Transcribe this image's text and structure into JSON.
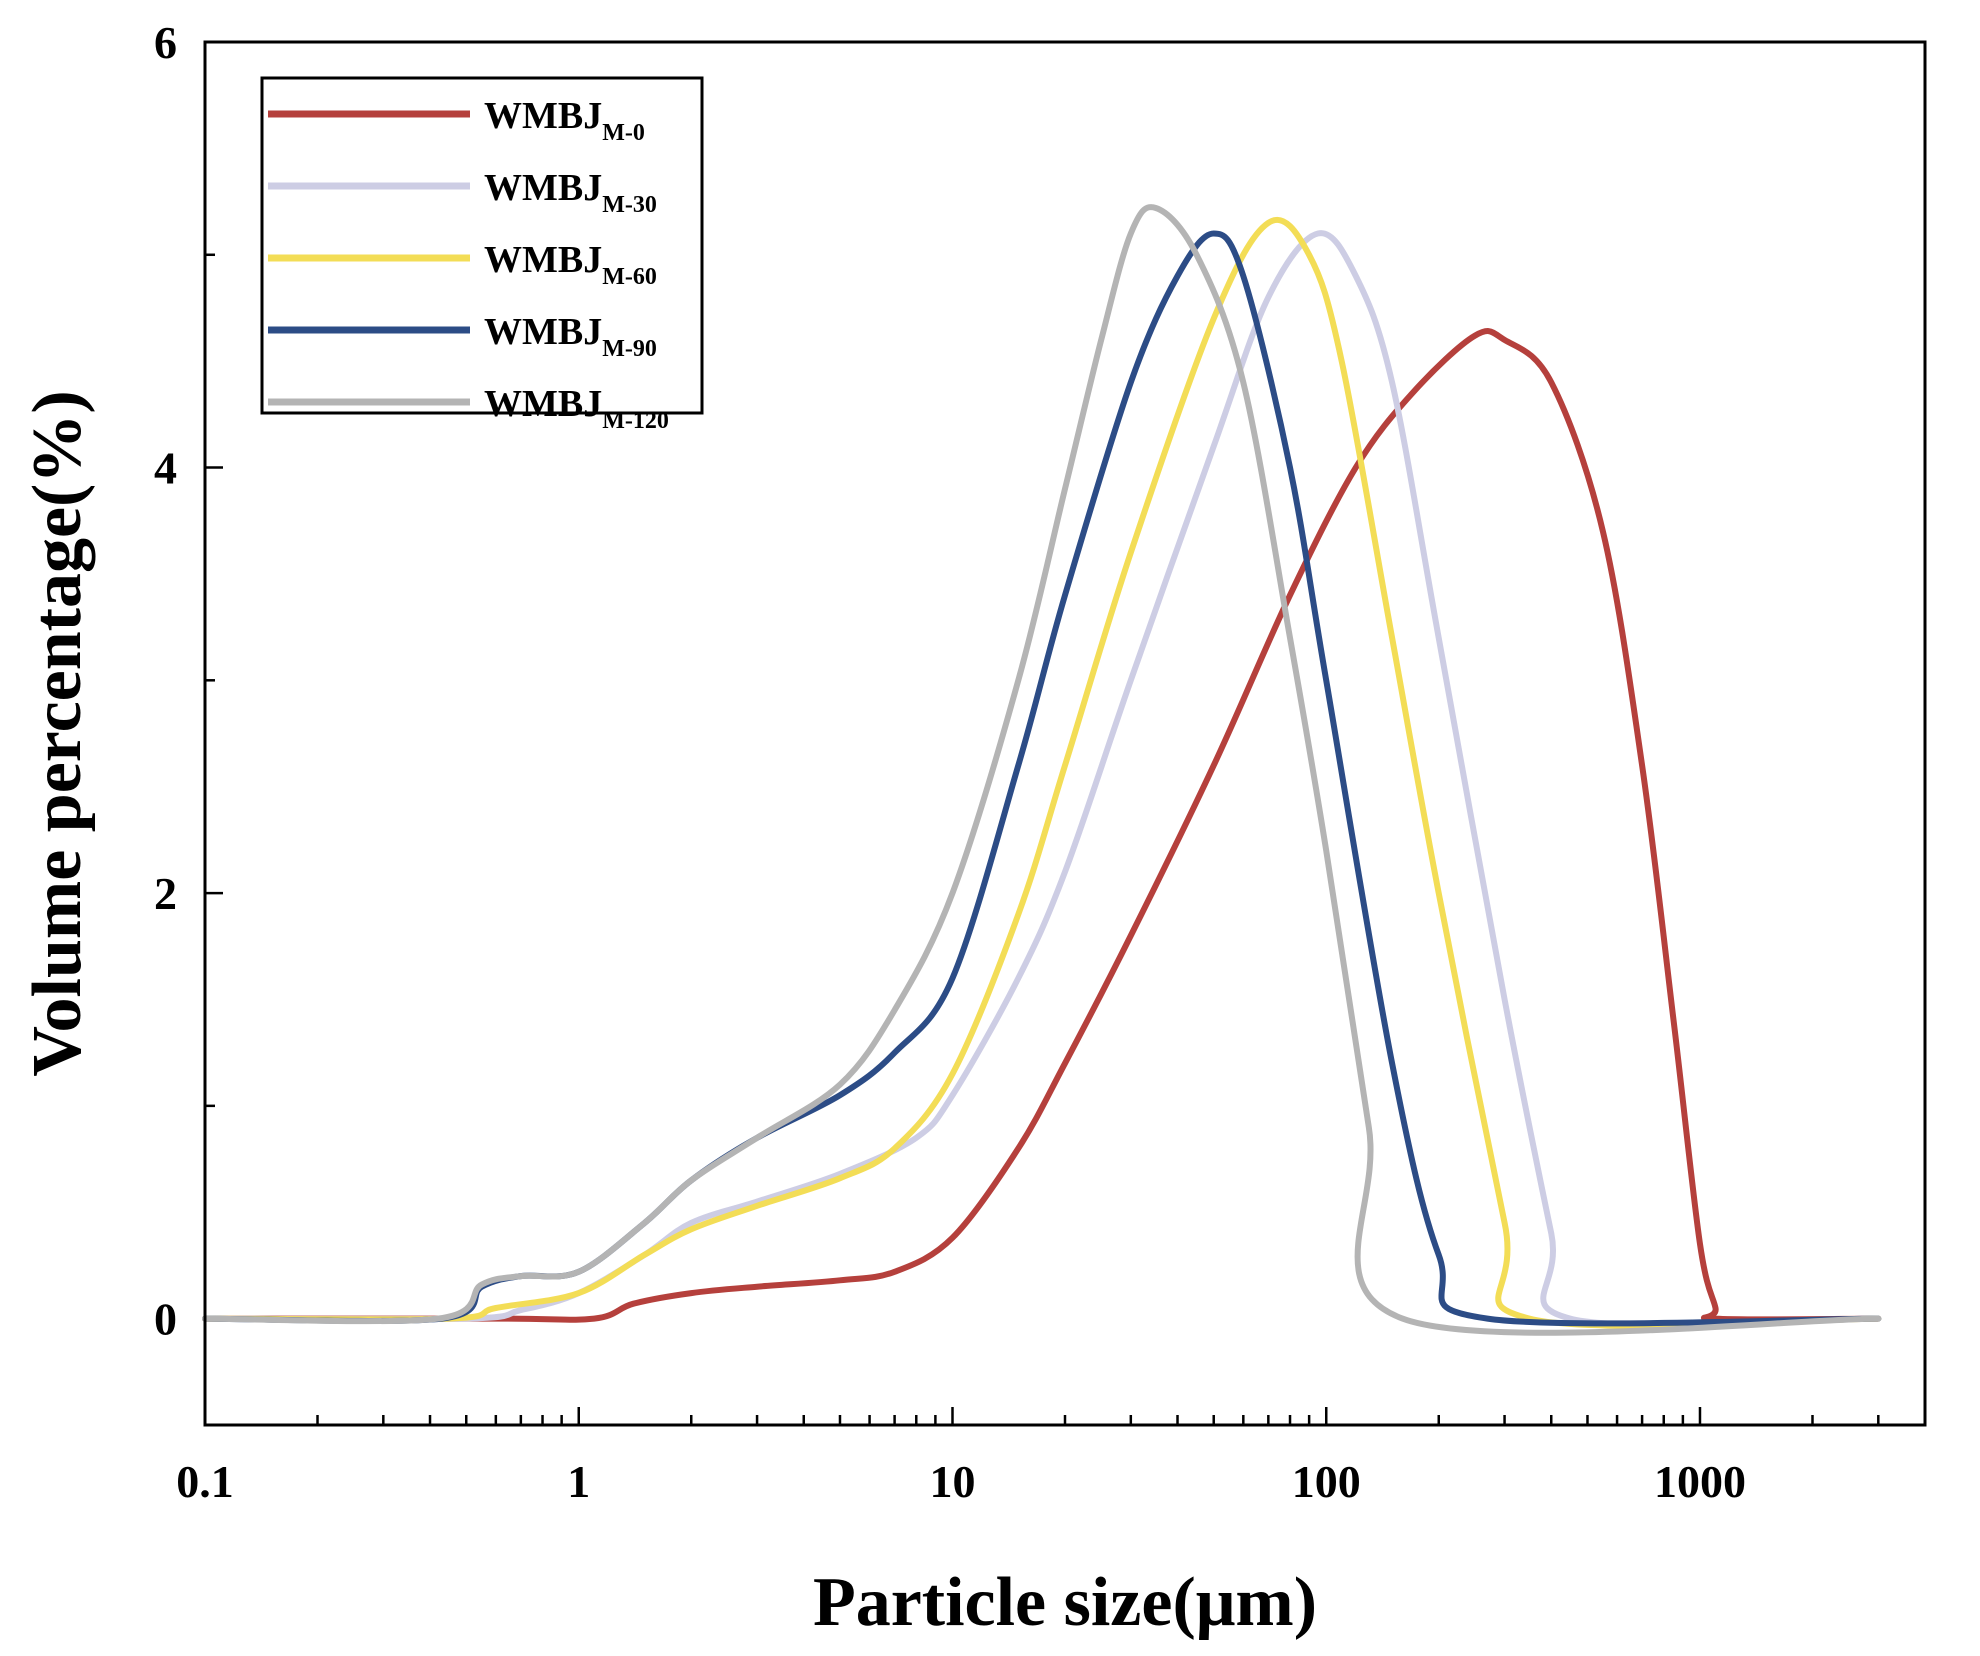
{
  "chart_data": {
    "type": "line",
    "title": "",
    "xlabel": "Particle size(μm)",
    "ylabel": "Volume percentage(%)",
    "xscale": "log",
    "xlim": [
      0.1,
      4000
    ],
    "ylim": [
      -0.5,
      6
    ],
    "xticks": [
      {
        "value": 0.1,
        "label": "0.1"
      },
      {
        "value": 1,
        "label": "1"
      },
      {
        "value": 10,
        "label": "10"
      },
      {
        "value": 100,
        "label": "100"
      },
      {
        "value": 1000,
        "label": "1000"
      }
    ],
    "yticks": [
      {
        "value": 0,
        "label": "0"
      },
      {
        "value": 2,
        "label": "2"
      },
      {
        "value": 4,
        "label": "4"
      },
      {
        "value": 6,
        "label": "6"
      }
    ],
    "legend_position": "top-left",
    "series": [
      {
        "name": "WMBJ",
        "sub": "M-0",
        "color": "#b5403c",
        "points": [
          [
            0.1,
            0
          ],
          [
            0.6,
            0
          ],
          [
            1.1,
            0
          ],
          [
            1.4,
            0.07
          ],
          [
            2,
            0.12
          ],
          [
            3,
            0.15
          ],
          [
            5,
            0.18
          ],
          [
            7,
            0.22
          ],
          [
            10,
            0.38
          ],
          [
            15,
            0.8
          ],
          [
            20,
            1.2
          ],
          [
            30,
            1.8
          ],
          [
            50,
            2.6
          ],
          [
            80,
            3.4
          ],
          [
            120,
            4.0
          ],
          [
            170,
            4.35
          ],
          [
            250,
            4.62
          ],
          [
            300,
            4.6
          ],
          [
            400,
            4.4
          ],
          [
            550,
            3.7
          ],
          [
            700,
            2.6
          ],
          [
            850,
            1.4
          ],
          [
            1000,
            0.35
          ],
          [
            1100,
            0.05
          ],
          [
            1100,
            0
          ],
          [
            3000,
            0
          ]
        ]
      },
      {
        "name": "WMBJ",
        "sub": "M-30",
        "color": "#cdcde4",
        "points": [
          [
            0.1,
            0
          ],
          [
            0.5,
            0
          ],
          [
            0.7,
            0.04
          ],
          [
            1,
            0.12
          ],
          [
            1.5,
            0.3
          ],
          [
            2,
            0.45
          ],
          [
            3,
            0.55
          ],
          [
            5,
            0.68
          ],
          [
            8,
            0.85
          ],
          [
            10,
            1.05
          ],
          [
            15,
            1.6
          ],
          [
            20,
            2.1
          ],
          [
            30,
            3.0
          ],
          [
            50,
            4.1
          ],
          [
            70,
            4.8
          ],
          [
            95,
            5.1
          ],
          [
            120,
            4.9
          ],
          [
            150,
            4.4
          ],
          [
            200,
            3.2
          ],
          [
            300,
            1.5
          ],
          [
            400,
            0.4
          ],
          [
            450,
            0
          ],
          [
            3000,
            0
          ]
        ]
      },
      {
        "name": "WMBJ",
        "sub": "M-60",
        "color": "#f3dd56",
        "points": [
          [
            0.1,
            0
          ],
          [
            0.45,
            0
          ],
          [
            0.6,
            0.05
          ],
          [
            1,
            0.12
          ],
          [
            1.5,
            0.3
          ],
          [
            2,
            0.42
          ],
          [
            3,
            0.53
          ],
          [
            5,
            0.66
          ],
          [
            7,
            0.8
          ],
          [
            10,
            1.15
          ],
          [
            15,
            1.9
          ],
          [
            20,
            2.6
          ],
          [
            30,
            3.6
          ],
          [
            50,
            4.7
          ],
          [
            70,
            5.15
          ],
          [
            90,
            5.0
          ],
          [
            110,
            4.5
          ],
          [
            150,
            3.2
          ],
          [
            200,
            2.0
          ],
          [
            300,
            0.45
          ],
          [
            350,
            0
          ],
          [
            3000,
            0
          ]
        ]
      },
      {
        "name": "WMBJ",
        "sub": "M-90",
        "color": "#2c4c86",
        "points": [
          [
            0.1,
            0
          ],
          [
            0.43,
            0
          ],
          [
            0.55,
            0.15
          ],
          [
            0.7,
            0.2
          ],
          [
            1,
            0.22
          ],
          [
            1.5,
            0.45
          ],
          [
            2,
            0.65
          ],
          [
            3,
            0.85
          ],
          [
            5,
            1.05
          ],
          [
            7,
            1.25
          ],
          [
            10,
            1.6
          ],
          [
            15,
            2.6
          ],
          [
            20,
            3.4
          ],
          [
            30,
            4.4
          ],
          [
            40,
            4.9
          ],
          [
            50,
            5.1
          ],
          [
            60,
            4.9
          ],
          [
            80,
            4.0
          ],
          [
            100,
            3.0
          ],
          [
            150,
            1.2
          ],
          [
            200,
            0.3
          ],
          [
            270,
            0
          ],
          [
            3000,
            0
          ]
        ]
      },
      {
        "name": "WMBJ",
        "sub": "M-120",
        "color": "#b4b4b4",
        "points": [
          [
            0.1,
            0
          ],
          [
            0.42,
            0
          ],
          [
            0.55,
            0.16
          ],
          [
            0.7,
            0.2
          ],
          [
            1,
            0.22
          ],
          [
            1.5,
            0.45
          ],
          [
            2,
            0.65
          ],
          [
            3,
            0.85
          ],
          [
            5,
            1.1
          ],
          [
            7,
            1.45
          ],
          [
            10,
            2.0
          ],
          [
            15,
            3.0
          ],
          [
            20,
            3.9
          ],
          [
            25,
            4.6
          ],
          [
            30,
            5.1
          ],
          [
            35,
            5.22
          ],
          [
            45,
            5.0
          ],
          [
            60,
            4.4
          ],
          [
            80,
            3.2
          ],
          [
            100,
            2.2
          ],
          [
            130,
            0.9
          ],
          [
            160,
            0
          ],
          [
            3000,
            0
          ]
        ]
      }
    ]
  }
}
